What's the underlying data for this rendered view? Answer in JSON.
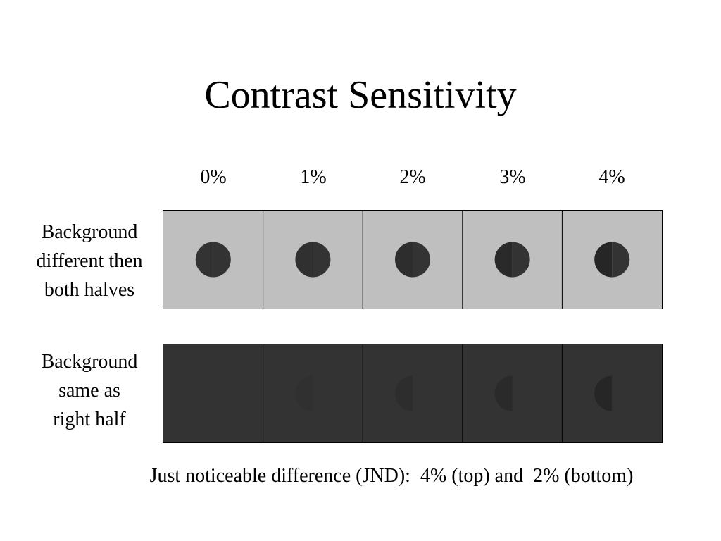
{
  "title": "Contrast Sensitivity",
  "column_labels": [
    "0%",
    "1%",
    "2%",
    "3%",
    "4%"
  ],
  "rows": [
    {
      "label_lines": [
        "Background",
        "different then",
        "both halves"
      ],
      "background_color": "#bfbfbf",
      "left_half_colors": [
        "#333333",
        "#303030",
        "#2d2d2d",
        "#2a2a2a",
        "#262626"
      ],
      "right_half_color": "#333333"
    },
    {
      "label_lines": [
        "Background",
        "same as",
        "right half"
      ],
      "background_color": "#333333",
      "left_half_colors": [
        "#333333",
        "#303030",
        "#2d2d2d",
        "#2a2a2a",
        "#262626"
      ],
      "right_half_color": "#333333"
    }
  ],
  "footer": "Just noticeable difference (JND):  4% (top) and  2% (bottom)"
}
